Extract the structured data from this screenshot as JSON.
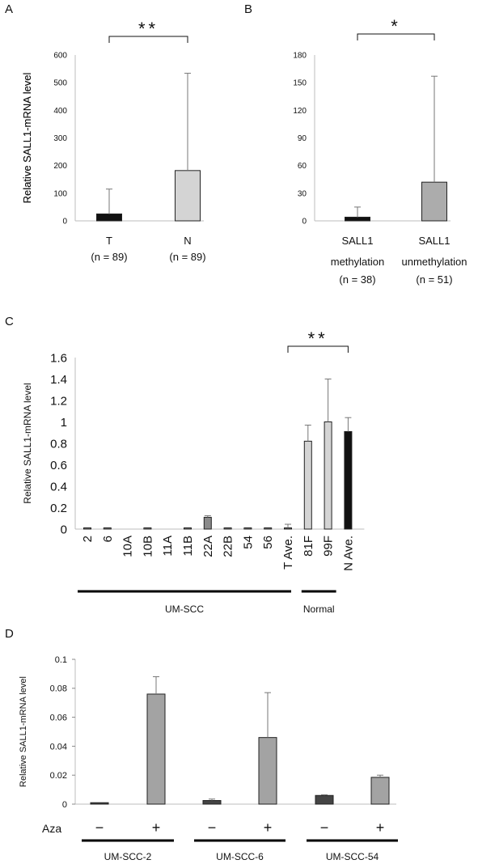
{
  "panels": {
    "A": {
      "letter": "A"
    },
    "B": {
      "letter": "B"
    },
    "C": {
      "letter": "C"
    },
    "D": {
      "letter": "D"
    }
  },
  "chart_data": [
    {
      "id": "A",
      "type": "bar",
      "ylabel": "Relative SALL1-mRNA  level",
      "ylim": [
        0,
        600
      ],
      "yticks": [
        0,
        100,
        200,
        300,
        400,
        500,
        600
      ],
      "categories": [
        "T",
        "N"
      ],
      "category_sublabels": [
        [
          "(n = 89)"
        ],
        [
          "(n = 89)"
        ]
      ],
      "values": [
        25,
        182
      ],
      "errors": [
        90,
        352
      ],
      "bar_colors": [
        "#111111",
        "#d4d4d4"
      ],
      "significance": [
        {
          "from": 0,
          "to": 1,
          "label": "**"
        }
      ],
      "grid": false
    },
    {
      "id": "B",
      "type": "bar",
      "ylabel": "Relative SALL1-mRNA  level",
      "ylim": [
        0,
        180
      ],
      "yticks": [
        0,
        30,
        60,
        90,
        120,
        150,
        180
      ],
      "categories": [
        "SALL1",
        "SALL1"
      ],
      "category_sublabels": [
        [
          "methylation",
          "(n = 38)"
        ],
        [
          "unmethylation",
          "(n = 51)"
        ]
      ],
      "values": [
        4,
        42
      ],
      "errors": [
        11,
        115
      ],
      "bar_colors": [
        "#111111",
        "#acacac"
      ],
      "significance": [
        {
          "from": 0,
          "to": 1,
          "label": "*"
        }
      ],
      "grid": false
    },
    {
      "id": "C",
      "type": "bar",
      "ylabel": "Relative SALL1-mRNA  level",
      "ylim": [
        0,
        1.6
      ],
      "yticks": [
        "0",
        "0.2",
        "0.4",
        "0.6",
        "0.8",
        "1",
        "1.2",
        "1.4",
        "1.6"
      ],
      "categories": [
        "2",
        "6",
        "10A",
        "10B",
        "11A",
        "11B",
        "22A",
        "22B",
        "54",
        "56",
        "T Ave.",
        "81F",
        "99F",
        "N Ave."
      ],
      "values": [
        0.002,
        0.002,
        0,
        0.002,
        0,
        0.002,
        0.11,
        0.002,
        0.002,
        0.002,
        0.01,
        0.82,
        1.0,
        0.91
      ],
      "errors": [
        0,
        0,
        0,
        0,
        0,
        0,
        0.015,
        0,
        0,
        0,
        0.035,
        0.15,
        0.4,
        0.13
      ],
      "bar_colors": [
        "#8a8a8a",
        "#8a8a8a",
        "#8a8a8a",
        "#8a8a8a",
        "#8a8a8a",
        "#8a8a8a",
        "#8a8a8a",
        "#8a8a8a",
        "#8a8a8a",
        "#8a8a8a",
        "#777777",
        "#d4d4d4",
        "#d4d4d4",
        "#111111"
      ],
      "groups": [
        {
          "label": "UM-SCC",
          "from": 0,
          "to": 10
        },
        {
          "label": "Normal",
          "from": 11,
          "to": 12
        }
      ],
      "significance": [
        {
          "from": 10,
          "to": 13,
          "label": "**"
        }
      ],
      "grid": false
    },
    {
      "id": "D",
      "type": "bar",
      "ylabel": "Relative SALL1-mRNA  level",
      "ylim": [
        0,
        0.1
      ],
      "yticks": [
        "0",
        "0.02",
        "0.04",
        "0.06",
        "0.08",
        "0.1"
      ],
      "row_label": "Aza",
      "categories": [
        "−",
        "+",
        "−",
        "+",
        "−",
        "+"
      ],
      "values": [
        0.001,
        0.076,
        0.0025,
        0.046,
        0.006,
        0.0185
      ],
      "errors": [
        0,
        0.012,
        0.001,
        0.031,
        0.0005,
        0.0015
      ],
      "bar_colors": [
        "#444444",
        "#a3a3a3",
        "#444444",
        "#a3a3a3",
        "#444444",
        "#a3a3a3"
      ],
      "groups": [
        {
          "label": "UM-SCC-2",
          "from": 0,
          "to": 1
        },
        {
          "label": "UM-SCC-6",
          "from": 2,
          "to": 3
        },
        {
          "label": "UM-SCC-54",
          "from": 4,
          "to": 5
        }
      ],
      "grid": false
    }
  ]
}
